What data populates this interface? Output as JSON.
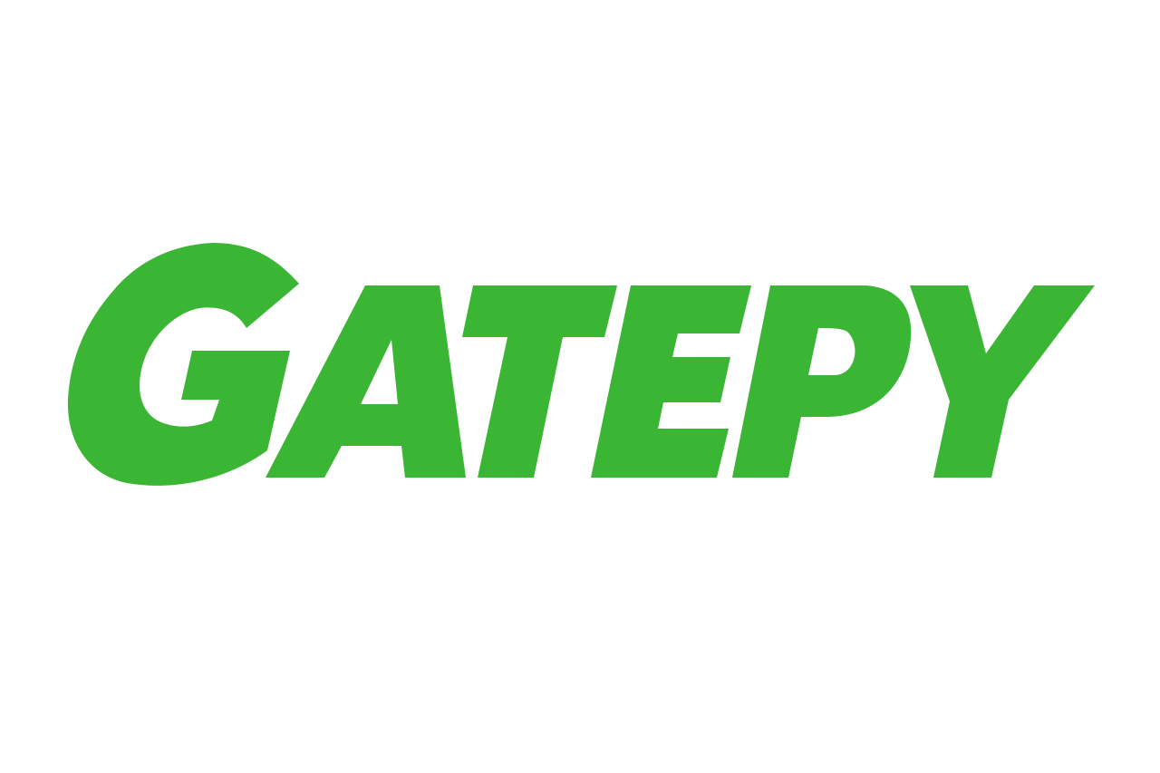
{
  "logo": {
    "wordmark": "GATEPY",
    "brand_color": "#3AB534",
    "background_color": "#FFFFFF"
  }
}
